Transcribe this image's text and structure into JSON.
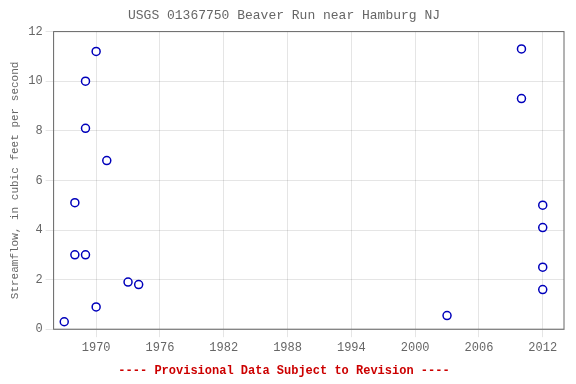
{
  "chart_data": {
    "type": "scatter",
    "title": "USGS 01367750 Beaver Run near Hamburg NJ",
    "ylabel": "Streamflow, in cubic feet per second",
    "annotations": [
      "---- Provisional Data Subject to Revision ----"
    ],
    "x": [
      1967,
      1968,
      1969,
      1969,
      1970,
      1971,
      1973,
      1968,
      1969,
      1970,
      1974,
      2003,
      2010,
      2010,
      2012,
      2012,
      2012,
      2012
    ],
    "values": [
      0.3,
      5.1,
      10.0,
      8.1,
      11.2,
      6.8,
      1.9,
      3.0,
      3.0,
      0.9,
      1.8,
      0.55,
      11.3,
      9.3,
      5.0,
      4.1,
      2.5,
      1.6
    ],
    "color": "#0000bb",
    "marker": "circle",
    "xlim": [
      1966,
      2014
    ],
    "xticks": [
      1970,
      1976,
      1982,
      1988,
      1994,
      2000,
      2006,
      2012
    ],
    "ylim": [
      0,
      12
    ],
    "yticks": [
      0,
      2,
      4,
      6,
      8,
      10,
      12
    ],
    "grid": true
  }
}
